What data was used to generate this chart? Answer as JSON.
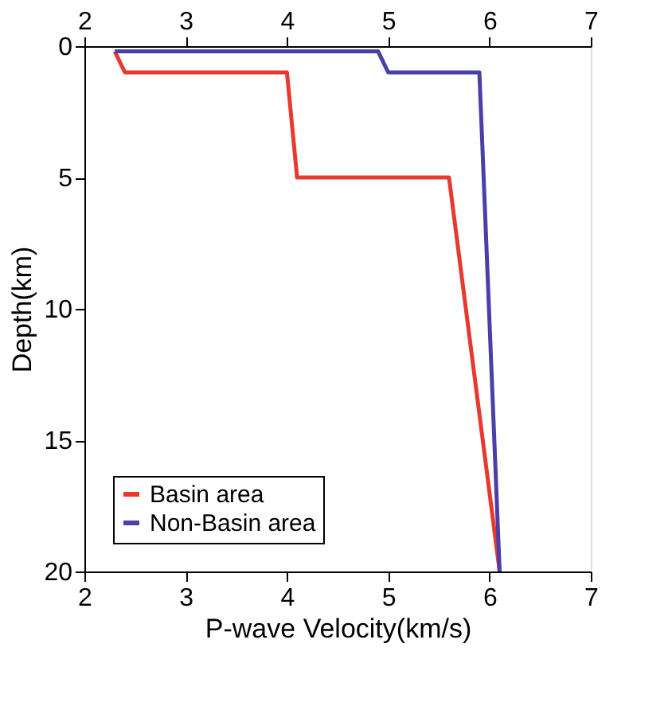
{
  "chart_data": {
    "type": "line",
    "xlabel": "P-wave Velocity(km/s)",
    "ylabel": "Depth(km)",
    "xlim": [
      2,
      7
    ],
    "xticks": [
      2,
      3,
      4,
      5,
      6,
      7
    ],
    "x2lim": [
      2,
      7
    ],
    "x2ticks": [
      2,
      3,
      4,
      5,
      6,
      7
    ],
    "ylim": [
      20,
      0
    ],
    "yticks": [
      0,
      5,
      10,
      15,
      20
    ],
    "series": [
      {
        "name": "Basin area",
        "color": "#e8392f",
        "x": [
          2.3,
          2.4,
          4.0,
          4.1,
          5.6,
          6.1
        ],
        "values": [
          0.2,
          1,
          1,
          5,
          5,
          20
        ]
      },
      {
        "name": "Non-Basin area",
        "color": "#4a3fa8",
        "x": [
          2.3,
          4.9,
          5.0,
          5.9,
          6.1
        ],
        "values": [
          0.2,
          0.2,
          1,
          1,
          20
        ]
      }
    ],
    "legend": "bottom left",
    "grid": false,
    "marker": "none",
    "line_style": "solid"
  }
}
